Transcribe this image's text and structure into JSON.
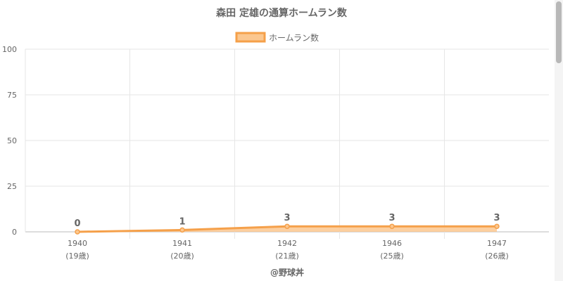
{
  "chart_data": {
    "type": "area",
    "title": "森田 定雄の通算ホームラン数",
    "legend": {
      "position": "top",
      "entries": [
        "ホームラン数"
      ]
    },
    "categories": [
      "1940",
      "1941",
      "1942",
      "1946",
      "1947"
    ],
    "sublabels": [
      "(19歳)",
      "(20歳)",
      "(21歳)",
      "(25歳)",
      "(26歳)"
    ],
    "series": [
      {
        "name": "ホームラン数",
        "values": [
          0,
          1,
          3,
          3,
          3
        ]
      }
    ],
    "ylim": [
      0,
      100
    ],
    "yticks": [
      "0",
      "25",
      "50",
      "75",
      "100"
    ],
    "grid": true,
    "xlabel": "@野球丼",
    "colors": {
      "line": "#f5a04a",
      "fill": "#fbc78f",
      "grid": "#e6e6e6",
      "text": "#666666"
    }
  }
}
